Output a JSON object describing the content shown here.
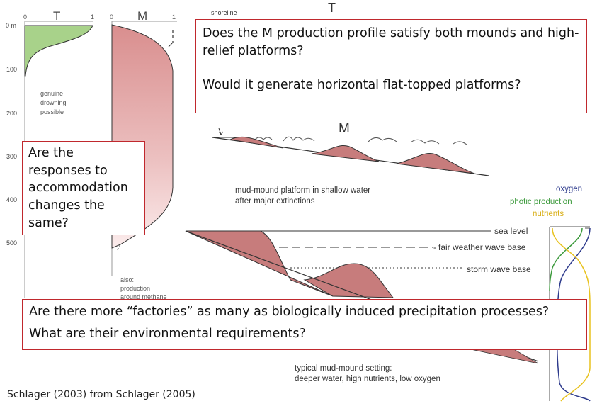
{
  "depth_axis": {
    "ticks": [
      "0 m",
      "100",
      "200",
      "300",
      "400",
      "500"
    ]
  },
  "panel_T": {
    "title": "T",
    "scale_min": "0",
    "scale_max": "1",
    "note": [
      "genuine",
      "drowning",
      "possible"
    ]
  },
  "panel_M": {
    "title": "M",
    "scale_min": "0",
    "scale_max": "1",
    "note": [
      "also:",
      "production",
      "around methane"
    ]
  },
  "right_diagram": {
    "title_T": "T",
    "shoreline_label": "shoreline",
    "title_M": "M",
    "platform_caption": [
      "mud-mound platform in shallow water",
      "after major extinctions"
    ],
    "sea_level_label": "sea level",
    "fair_weather_label": "fair weather wave base",
    "storm_wave_label": "storm wave base",
    "setting_caption": [
      "typical mud-mound setting:",
      "deeper water, high nutrients, low oxygen"
    ]
  },
  "side_profile": {
    "oxygen_label": "oxygen",
    "photic_label": "photic production",
    "nutrients_label": "nutrients",
    "colors": {
      "oxygen": "#2d3a8c",
      "photic": "#3c9a3c",
      "nutrients": "#e8c21e"
    }
  },
  "callouts": {
    "top_q1": "Does the M production profile satisfy both mounds and high-relief platforms?",
    "top_q2": "Would it generate horizontal flat-topped platforms?",
    "left_q": "Are the responses to accommodation changes the same?",
    "bottom_q1": "Are there more “factories” as many as biologically induced precipitation processes?",
    "bottom_q2": "What are their environmental requirements?"
  },
  "citation": "Schlager (2003) from Schlager (2005)",
  "colors": {
    "callout_border": "#c0282d",
    "t_fill": "#a8d28a",
    "m_fill": "#e0a3a3",
    "mound_fill": "#c77c7c"
  }
}
